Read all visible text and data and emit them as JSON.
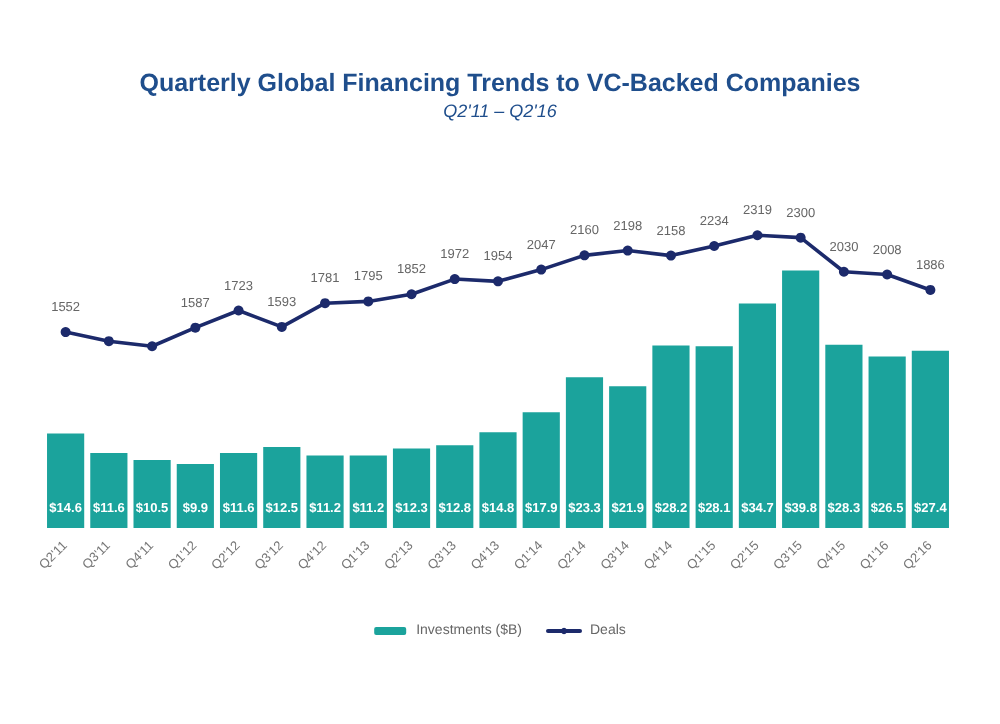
{
  "chart_data": {
    "type": "bar",
    "title": "Quarterly Global Financing Trends to VC-Backed Companies",
    "subtitle": "Q2'11 – Q2'16",
    "categories": [
      "Q2'11",
      "Q3'11",
      "Q4'11",
      "Q1'12",
      "Q2'12",
      "Q3'12",
      "Q4'12",
      "Q1'13",
      "Q2'13",
      "Q3'13",
      "Q4'13",
      "Q1'14",
      "Q2'14",
      "Q3'14",
      "Q4'14",
      "Q1'15",
      "Q2'15",
      "Q3'15",
      "Q4'15",
      "Q1'16",
      "Q2'16"
    ],
    "series": [
      {
        "name": "Investments ($B)",
        "color": "#1ba39c",
        "values": [
          14.6,
          11.6,
          10.5,
          9.9,
          11.6,
          12.5,
          11.2,
          11.2,
          12.3,
          12.8,
          14.8,
          17.9,
          23.3,
          21.9,
          28.2,
          28.1,
          34.7,
          39.8,
          28.3,
          26.5,
          27.4
        ],
        "value_labels": [
          "$14.6",
          "$11.6",
          "$10.5",
          "$9.9",
          "$11.6",
          "$12.5",
          "$11.2",
          "$11.2",
          "$12.3",
          "$12.8",
          "$14.8",
          "$17.9",
          "$23.3",
          "$21.9",
          "$28.2",
          "$28.1",
          "$34.7",
          "$39.8",
          "$28.3",
          "$26.5",
          "$27.4"
        ]
      },
      {
        "name": "Deals",
        "type": "line",
        "axis": "y2",
        "color": "#1c2a6b",
        "values": [
          1552,
          1480,
          1440,
          1587,
          1723,
          1593,
          1781,
          1795,
          1852,
          1972,
          1954,
          2047,
          2160,
          2198,
          2158,
          2234,
          2319,
          2300,
          2030,
          2008,
          1886
        ],
        "value_labels": [
          "1552",
          null,
          null,
          "1587",
          "1723",
          "1593",
          "1781",
          "1795",
          "1852",
          "1972",
          "1954",
          "2047",
          "2160",
          "2198",
          "2158",
          "2234",
          "2319",
          "2300",
          "2030",
          "2008",
          "1886"
        ]
      }
    ],
    "marker": "circle",
    "line_style": "solid",
    "legend": "bottom",
    "tick_labels": "x"
  }
}
